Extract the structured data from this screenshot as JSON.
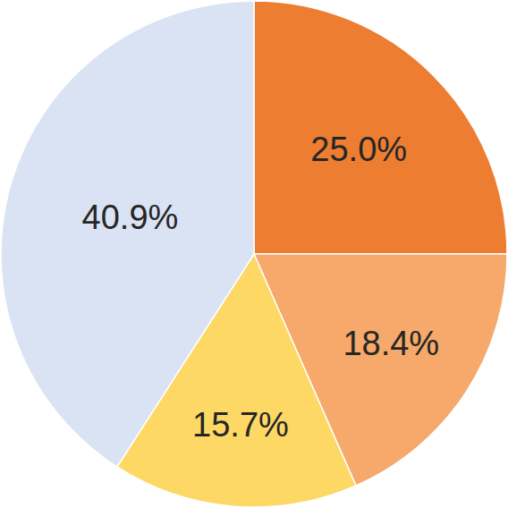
{
  "chart_data": {
    "type": "pie",
    "values": [
      25.0,
      18.4,
      15.7,
      40.9
    ],
    "value_labels": [
      "25.0%",
      "18.4%",
      "15.7%",
      "40.9%"
    ],
    "colors": [
      "#ed7d31",
      "#f6a96a",
      "#fdd865",
      "#dae3f3"
    ],
    "data_labels": true
  }
}
